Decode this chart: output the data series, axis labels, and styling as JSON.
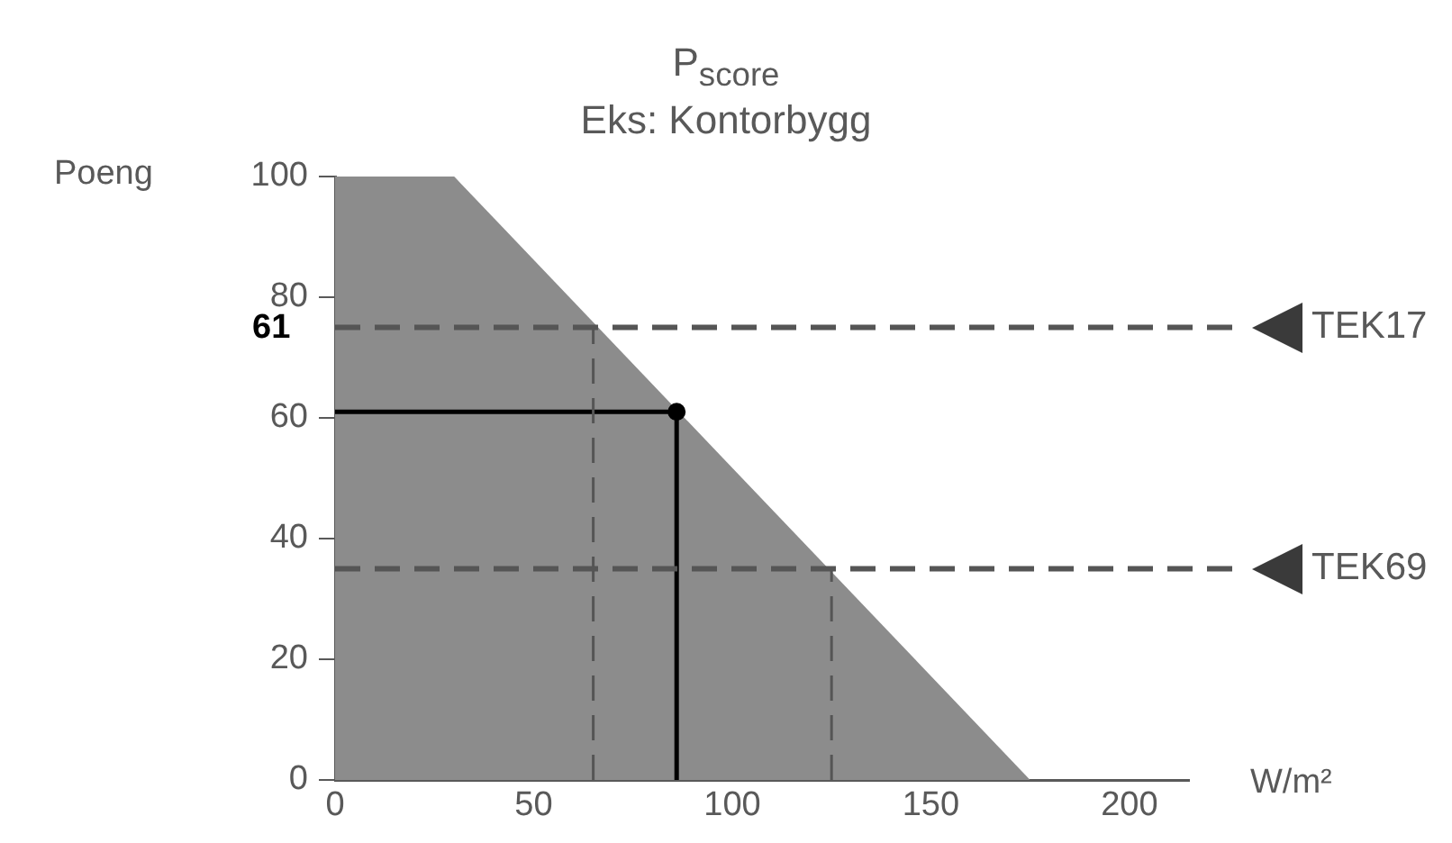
{
  "chart_data": {
    "type": "area",
    "title": "P$_{score}$",
    "subtitle": "Eks: Kontorbygg",
    "xlabel": "W/m²",
    "ylabel": "Poeng",
    "series": [
      {
        "color": "#8c8c8c",
        "x": [
          0,
          30,
          175
        ],
        "values": [
          100,
          100,
          0
        ]
      },
      {
        "type": "line",
        "color": "#555555",
        "line_style": "dashed",
        "marker": "none",
        "x": [
          65,
          65
        ],
        "values": [
          0,
          75
        ]
      },
      {
        "type": "line",
        "color": "#555555",
        "line_style": "dashed",
        "marker": "none",
        "x": [
          125,
          125
        ],
        "values": [
          0,
          35
        ]
      },
      {
        "type": "line",
        "color": "#000000",
        "line_style": "solid",
        "marker": "none",
        "x": [
          0,
          86,
          86
        ],
        "values": [
          61,
          61,
          0
        ]
      },
      {
        "type": "scatter",
        "color": "#000000",
        "marker": "circle",
        "x": [
          86
        ],
        "values": [
          61
        ]
      }
    ],
    "ref_lines": [
      {
        "axis": "y",
        "value": 75,
        "label": "TEK17",
        "color": "#555555",
        "line_style": "dashed"
      },
      {
        "axis": "y",
        "value": 35,
        "label": "TEK69",
        "color": "#555555",
        "line_style": "dashed"
      }
    ],
    "annotations": [
      "61"
    ],
    "xlim": [
      0,
      215
    ],
    "xticks": [
      0,
      50,
      100,
      150,
      200
    ],
    "ylim": [
      0,
      100
    ],
    "yticks": [
      0,
      20,
      40,
      60,
      80,
      100
    ],
    "grid": false,
    "legend": false
  }
}
